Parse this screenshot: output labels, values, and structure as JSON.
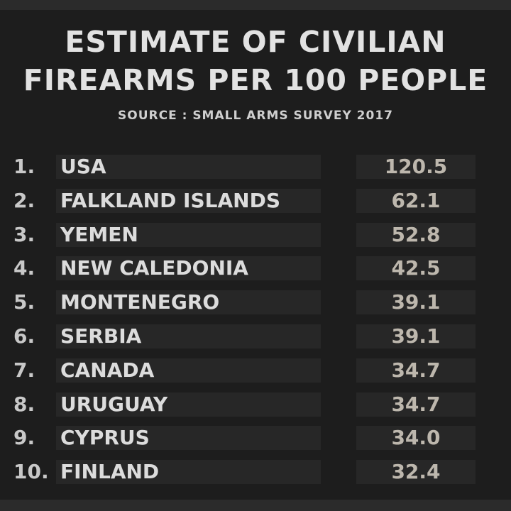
{
  "header": {
    "title_line1": "ESTIMATE OF CIVILIAN",
    "title_line2": "FIREARMS PER 100 PEOPLE",
    "source": "SOURCE : SMALL ARMS SURVEY 2017"
  },
  "rows": [
    {
      "rank": "1.",
      "country": "USA",
      "value": "120.5"
    },
    {
      "rank": "2.",
      "country": "FALKLAND ISLANDS",
      "value": "62.1"
    },
    {
      "rank": "3.",
      "country": "YEMEN",
      "value": "52.8"
    },
    {
      "rank": "4.",
      "country": "NEW CALEDONIA",
      "value": "42.5"
    },
    {
      "rank": "5.",
      "country": "MONTENEGRO",
      "value": "39.1"
    },
    {
      "rank": "6.",
      "country": "SERBIA",
      "value": "39.1"
    },
    {
      "rank": "7.",
      "country": "CANADA",
      "value": "34.7"
    },
    {
      "rank": "8.",
      "country": "URUGUAY",
      "value": "34.7"
    },
    {
      "rank": "9.",
      "country": "CYPRUS",
      "value": "34.0"
    },
    {
      "rank": "10.",
      "country": "FINLAND",
      "value": "32.4"
    }
  ]
}
